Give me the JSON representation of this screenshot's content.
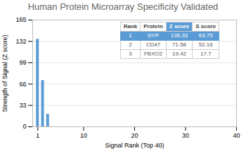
{
  "chart_data": {
    "type": "bar",
    "title": "Human Protein Microarray Specificity Validated",
    "xlabel": "Signal Rank (Top 40)",
    "ylabel": "Strength of Signal (Z score)",
    "x": [
      1,
      2,
      3
    ],
    "values": [
      135.33,
      71.58,
      19.42
    ],
    "color": "#5b9bd5",
    "xlim": [
      0,
      40
    ],
    "xticks": [
      1,
      10,
      20,
      30,
      40
    ],
    "ylim": [
      0,
      165
    ],
    "yticks": [
      0,
      33,
      66,
      99,
      132,
      165
    ],
    "grid": true,
    "table": {
      "columns": [
        "Rank",
        "Protein",
        "Z score",
        "S score"
      ],
      "rows": [
        [
          "1",
          "SYP",
          "135.33",
          "63.75"
        ],
        [
          "2",
          "CD47",
          "71.58",
          "52.16"
        ],
        [
          "3",
          "FBXO2",
          "19.42",
          "17.7"
        ]
      ]
    }
  }
}
